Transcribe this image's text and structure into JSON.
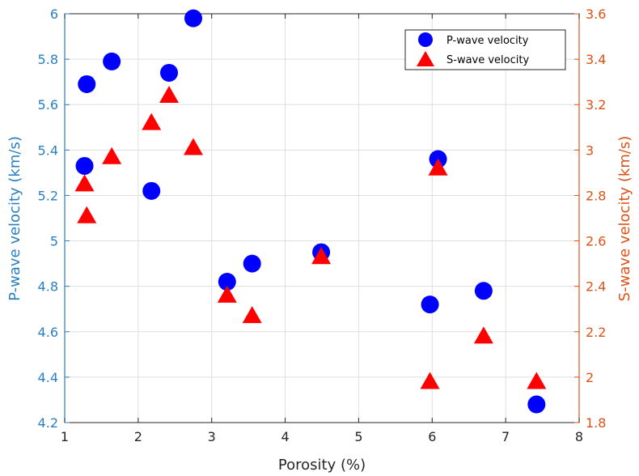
{
  "chart_data": {
    "type": "scatter",
    "xlabel": "Porosity (%)",
    "xlim": [
      1,
      8
    ],
    "xticks": [
      "1",
      "2",
      "3",
      "4",
      "5",
      "6",
      "7",
      "8"
    ],
    "y_left": {
      "label": "P-wave velocity (km/s)",
      "lim": [
        4.2,
        6.0
      ],
      "ticks": [
        "4.2",
        "4.4",
        "4.6",
        "4.8",
        "5",
        "5.2",
        "5.4",
        "5.6",
        "5.8",
        "6"
      ],
      "color": "#2a7fc0"
    },
    "y_right": {
      "label": "S-wave velocity (km/s)",
      "lim": [
        1.8,
        3.6
      ],
      "ticks": [
        "1.8",
        "2",
        "2.2",
        "2.4",
        "2.6",
        "2.8",
        "3",
        "3.2",
        "3.4",
        "3.6"
      ],
      "color": "#d95319"
    },
    "grid": true,
    "legend_position": "top-right",
    "series": [
      {
        "name": "P-wave velocity",
        "axis": "left",
        "marker": "circle",
        "color": "#0000ff",
        "x": [
          1.27,
          1.3,
          1.64,
          2.18,
          2.42,
          2.75,
          3.21,
          3.55,
          4.49,
          5.97,
          6.08,
          6.7,
          7.42
        ],
        "y": [
          5.33,
          5.69,
          5.79,
          5.22,
          5.74,
          5.98,
          4.82,
          4.9,
          4.95,
          4.72,
          5.36,
          4.78,
          4.28
        ]
      },
      {
        "name": "S-wave velocity",
        "axis": "right",
        "marker": "triangle",
        "color": "#ff0000",
        "x": [
          1.27,
          1.3,
          1.64,
          2.18,
          2.42,
          2.75,
          3.21,
          3.55,
          4.49,
          5.97,
          6.08,
          6.7,
          7.42
        ],
        "y": [
          2.85,
          2.71,
          2.97,
          3.12,
          3.24,
          3.01,
          2.36,
          2.27,
          2.53,
          1.98,
          2.92,
          2.18,
          1.98
        ]
      }
    ]
  }
}
